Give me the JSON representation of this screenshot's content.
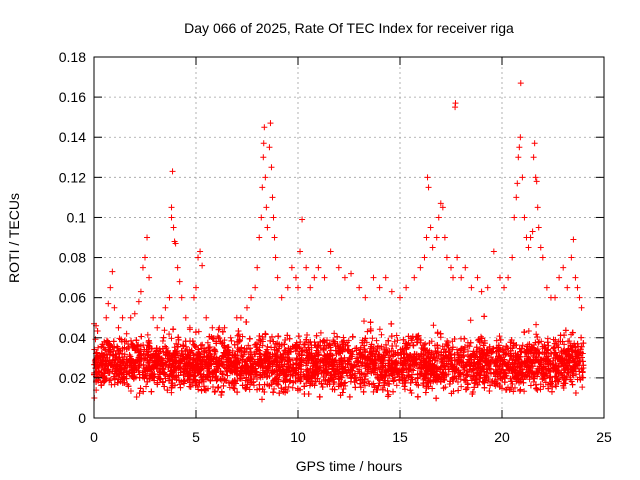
{
  "chart_data": {
    "type": "scatter",
    "title": "Day 066 of 2025, Rate Of TEC Index for receiver riga",
    "xlabel": "GPS time / hours",
    "ylabel": "ROTI / TECUs",
    "xlim": [
      0,
      25
    ],
    "ylim": [
      0,
      0.18
    ],
    "x_ticks": [
      0,
      5,
      10,
      15,
      20,
      25
    ],
    "y_ticks": [
      0,
      0.02,
      0.04,
      0.06,
      0.08,
      0.1,
      0.12,
      0.14,
      0.16,
      0.18
    ],
    "x_tick_labels": [
      "0",
      "5",
      "10",
      "15",
      "20",
      "25"
    ],
    "y_tick_labels": [
      "0",
      "0.02",
      "0.04",
      "0.06",
      "0.08",
      "0.1",
      "0.12",
      "0.14",
      "0.16",
      "0.18"
    ],
    "grid": true,
    "marker": "+",
    "color": "#ff0000",
    "points": [
      [
        0.0,
        0.047
      ],
      [
        0.1,
        0.046
      ],
      [
        0.2,
        0.035
      ],
      [
        0.3,
        0.028
      ],
      [
        0.5,
        0.038
      ],
      [
        0.6,
        0.05
      ],
      [
        0.7,
        0.057
      ],
      [
        0.8,
        0.065
      ],
      [
        0.9,
        0.073
      ],
      [
        1.0,
        0.055
      ],
      [
        1.2,
        0.045
      ],
      [
        1.4,
        0.05
      ],
      [
        1.6,
        0.042
      ],
      [
        1.8,
        0.05
      ],
      [
        2.0,
        0.052
      ],
      [
        2.2,
        0.058
      ],
      [
        2.3,
        0.063
      ],
      [
        2.4,
        0.075
      ],
      [
        2.5,
        0.08
      ],
      [
        2.6,
        0.09
      ],
      [
        2.7,
        0.07
      ],
      [
        2.9,
        0.05
      ],
      [
        3.1,
        0.045
      ],
      [
        3.3,
        0.05
      ],
      [
        3.5,
        0.055
      ],
      [
        3.7,
        0.06
      ],
      [
        3.8,
        0.1
      ],
      [
        3.8,
        0.105
      ],
      [
        3.85,
        0.123
      ],
      [
        3.9,
        0.095
      ],
      [
        3.95,
        0.088
      ],
      [
        4.0,
        0.087
      ],
      [
        4.1,
        0.075
      ],
      [
        4.2,
        0.068
      ],
      [
        4.3,
        0.06
      ],
      [
        4.5,
        0.05
      ],
      [
        4.7,
        0.045
      ],
      [
        4.9,
        0.06
      ],
      [
        5.0,
        0.065
      ],
      [
        5.1,
        0.08
      ],
      [
        5.2,
        0.083
      ],
      [
        5.3,
        0.076
      ],
      [
        5.5,
        0.05
      ],
      [
        5.8,
        0.045
      ],
      [
        6.1,
        0.04
      ],
      [
        6.4,
        0.045
      ],
      [
        6.7,
        0.04
      ],
      [
        7.0,
        0.05
      ],
      [
        7.2,
        0.05
      ],
      [
        7.5,
        0.055
      ],
      [
        7.7,
        0.06
      ],
      [
        7.9,
        0.065
      ],
      [
        8.0,
        0.075
      ],
      [
        8.1,
        0.09
      ],
      [
        8.2,
        0.1
      ],
      [
        8.25,
        0.115
      ],
      [
        8.3,
        0.13
      ],
      [
        8.32,
        0.137
      ],
      [
        8.35,
        0.145
      ],
      [
        8.4,
        0.12
      ],
      [
        8.45,
        0.105
      ],
      [
        8.5,
        0.095
      ],
      [
        8.6,
        0.135
      ],
      [
        8.65,
        0.147
      ],
      [
        8.7,
        0.125
      ],
      [
        8.75,
        0.11
      ],
      [
        8.8,
        0.1
      ],
      [
        8.85,
        0.09
      ],
      [
        8.9,
        0.08
      ],
      [
        9.0,
        0.07
      ],
      [
        9.2,
        0.06
      ],
      [
        9.5,
        0.065
      ],
      [
        9.7,
        0.075
      ],
      [
        9.9,
        0.07
      ],
      [
        10.0,
        0.065
      ],
      [
        10.1,
        0.083
      ],
      [
        10.2,
        0.099
      ],
      [
        10.4,
        0.075
      ],
      [
        10.6,
        0.065
      ],
      [
        10.8,
        0.07
      ],
      [
        11.0,
        0.075
      ],
      [
        11.3,
        0.07
      ],
      [
        11.6,
        0.083
      ],
      [
        12.0,
        0.075
      ],
      [
        12.3,
        0.07
      ],
      [
        12.6,
        0.072
      ],
      [
        13.0,
        0.065
      ],
      [
        13.3,
        0.06
      ],
      [
        13.7,
        0.07
      ],
      [
        14.0,
        0.065
      ],
      [
        14.3,
        0.07
      ],
      [
        14.6,
        0.063
      ],
      [
        15.0,
        0.06
      ],
      [
        15.3,
        0.065
      ],
      [
        15.7,
        0.07
      ],
      [
        16.0,
        0.075
      ],
      [
        16.2,
        0.08
      ],
      [
        16.3,
        0.09
      ],
      [
        16.35,
        0.12
      ],
      [
        16.4,
        0.115
      ],
      [
        16.5,
        0.095
      ],
      [
        16.6,
        0.085
      ],
      [
        16.8,
        0.09
      ],
      [
        16.9,
        0.1
      ],
      [
        17.0,
        0.107
      ],
      [
        17.1,
        0.105
      ],
      [
        17.2,
        0.09
      ],
      [
        17.3,
        0.08
      ],
      [
        17.5,
        0.075
      ],
      [
        17.6,
        0.07
      ],
      [
        17.7,
        0.155
      ],
      [
        17.72,
        0.157
      ],
      [
        17.8,
        0.08
      ],
      [
        18.0,
        0.07
      ],
      [
        18.2,
        0.075
      ],
      [
        18.5,
        0.065
      ],
      [
        18.8,
        0.07
      ],
      [
        19.0,
        0.063
      ],
      [
        19.3,
        0.065
      ],
      [
        19.6,
        0.083
      ],
      [
        19.9,
        0.07
      ],
      [
        20.1,
        0.065
      ],
      [
        20.3,
        0.07
      ],
      [
        20.5,
        0.08
      ],
      [
        20.6,
        0.1
      ],
      [
        20.7,
        0.11
      ],
      [
        20.75,
        0.117
      ],
      [
        20.8,
        0.13
      ],
      [
        20.85,
        0.135
      ],
      [
        20.9,
        0.14
      ],
      [
        20.92,
        0.167
      ],
      [
        21.0,
        0.12
      ],
      [
        21.1,
        0.1
      ],
      [
        21.2,
        0.09
      ],
      [
        21.3,
        0.085
      ],
      [
        21.4,
        0.09
      ],
      [
        21.5,
        0.093
      ],
      [
        21.55,
        0.13
      ],
      [
        21.6,
        0.137
      ],
      [
        21.65,
        0.12
      ],
      [
        21.7,
        0.118
      ],
      [
        21.75,
        0.105
      ],
      [
        21.8,
        0.095
      ],
      [
        21.9,
        0.085
      ],
      [
        22.0,
        0.08
      ],
      [
        22.2,
        0.065
      ],
      [
        22.4,
        0.06
      ],
      [
        22.6,
        0.06
      ],
      [
        22.8,
        0.07
      ],
      [
        23.0,
        0.075
      ],
      [
        23.2,
        0.065
      ],
      [
        23.4,
        0.08
      ],
      [
        23.5,
        0.089
      ],
      [
        23.6,
        0.07
      ],
      [
        23.7,
        0.065
      ],
      [
        23.8,
        0.06
      ],
      [
        23.9,
        0.055
      ]
    ],
    "dense_band": {
      "x_range": [
        0,
        24
      ],
      "y_low": 0.008,
      "y_high": 0.045,
      "point_count": 6000
    }
  }
}
